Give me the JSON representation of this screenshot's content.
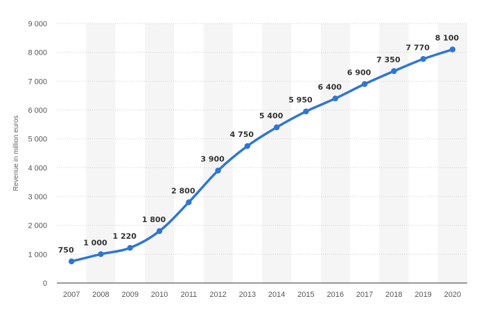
{
  "chart_data": {
    "type": "line",
    "ylabel": "Revenue in million euros",
    "xlabel": "",
    "categories": [
      "2007",
      "2008",
      "2009",
      "2010",
      "2011",
      "2012",
      "2013",
      "2014",
      "2015",
      "2016",
      "2017",
      "2018",
      "2019",
      "2020"
    ],
    "series": [
      {
        "values": [
          750,
          1000,
          1220,
          1800,
          2800,
          3900,
          4750,
          5400,
          5950,
          6400,
          6900,
          7350,
          7770,
          8100
        ],
        "value_labels": [
          "750",
          "1 000",
          "1 220",
          "1 800",
          "2 800",
          "3 900",
          "4 750",
          "5 400",
          "5 950",
          "6 400",
          "6 900",
          "7 350",
          "7 770",
          "8 100"
        ]
      }
    ],
    "ylim": [
      0,
      9000
    ],
    "yticks": [
      0,
      1000,
      2000,
      3000,
      4000,
      5000,
      6000,
      7000,
      8000,
      9000
    ],
    "ytick_labels": [
      "0",
      "1 000",
      "2 000",
      "3 000",
      "4 000",
      "5 000",
      "6 000",
      "7 000",
      "8 000",
      "9 000"
    ],
    "grid": true,
    "alternating_column_bands": true,
    "colors": {
      "line": "#2f76d2",
      "band": "#f5f5f5",
      "grid": "#cfcfcf",
      "axis": "#333333"
    }
  }
}
